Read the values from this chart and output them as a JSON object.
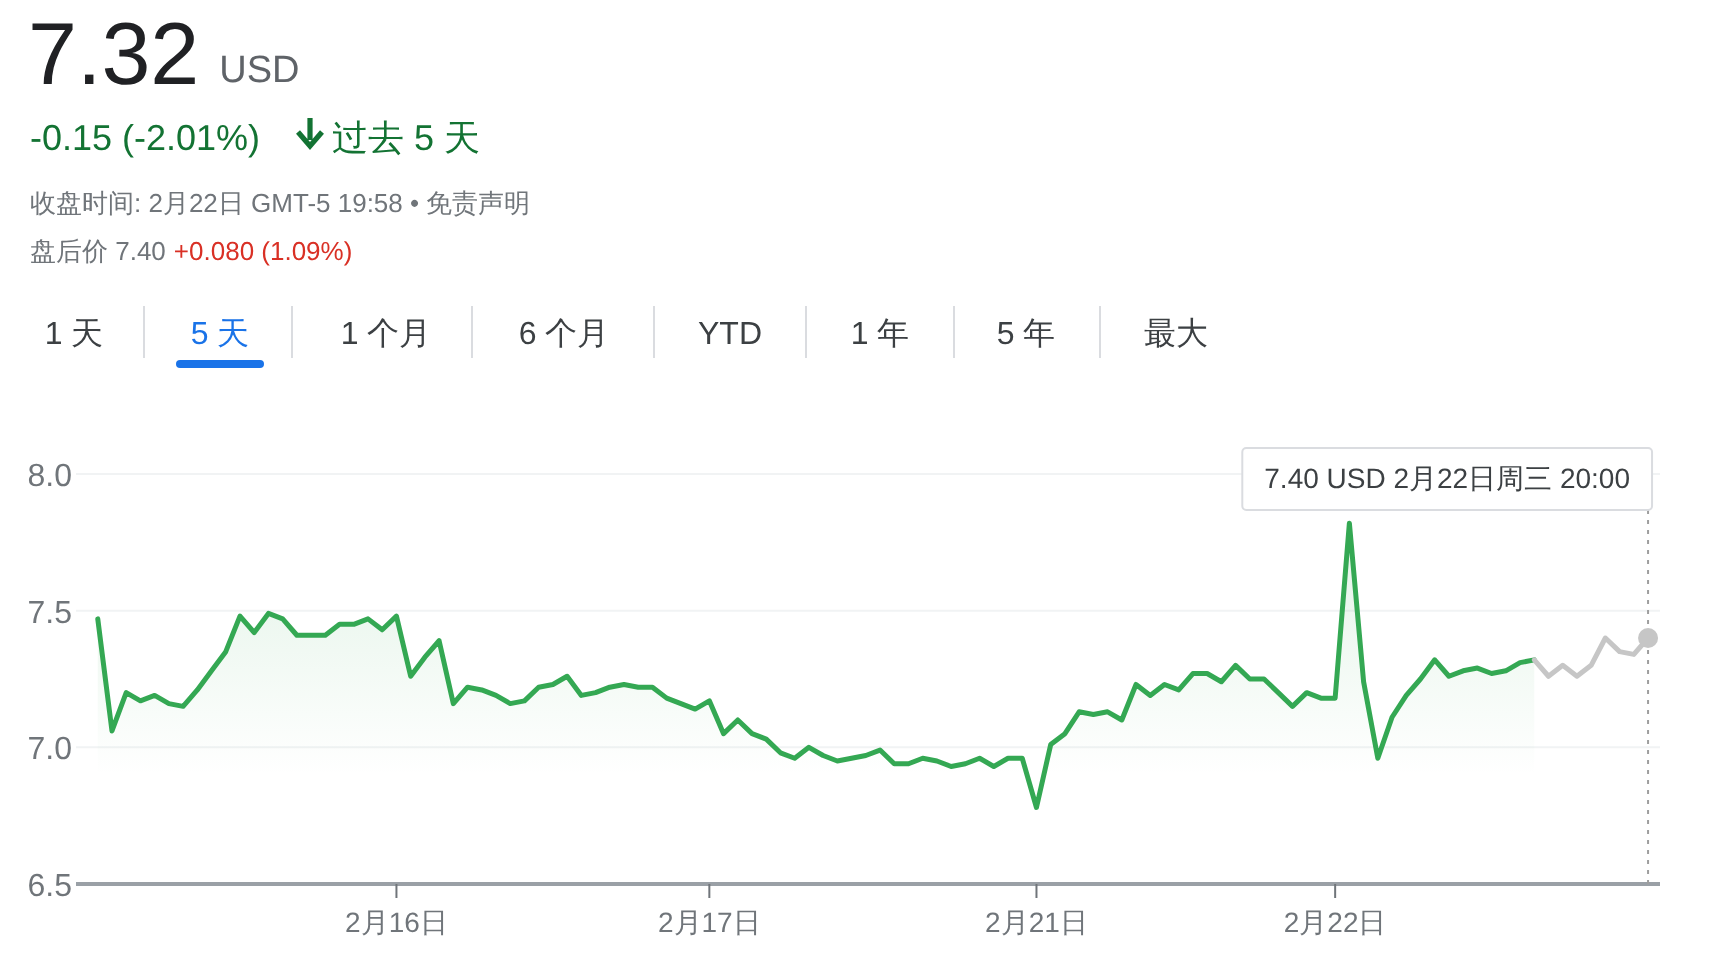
{
  "chart_data": {
    "type": "line",
    "title": "7.32",
    "subtitle": "USD",
    "annotations": [
      "-0.15 (-2.01%)",
      "过去 5 天",
      "收盘时间: 2月22日 GMT-5 19:58 • 免责声明",
      "盘后价 7.40",
      "+0.080 (1.09%)",
      "1 天",
      "5 天",
      "1 个月",
      "6 个月",
      "YTD",
      "1 年",
      "5 年",
      "最大",
      "7.40 USD  2月22日周三 20:00"
    ],
    "categories": [
      null,
      null,
      null,
      null,
      null,
      null,
      null,
      null,
      null,
      null,
      null,
      null,
      null,
      null,
      null,
      null,
      null,
      null,
      null,
      null,
      null,
      "2月16日",
      null,
      null,
      null,
      null,
      null,
      null,
      null,
      null,
      null,
      null,
      null,
      null,
      null,
      null,
      null,
      null,
      null,
      null,
      null,
      null,
      null,
      "2月17日",
      null,
      null,
      null,
      null,
      null,
      null,
      null,
      null,
      null,
      null,
      null,
      null,
      null,
      null,
      null,
      null,
      null,
      null,
      null,
      null,
      null,
      null,
      "2月21日",
      null,
      null,
      null,
      null,
      null,
      null,
      null,
      null,
      null,
      null,
      null,
      null,
      null,
      null,
      null,
      null,
      null,
      null,
      null,
      null,
      "2月22日",
      null,
      null,
      null,
      null,
      null,
      null,
      null,
      null,
      null,
      null,
      null,
      null,
      null,
      null,
      null,
      null,
      null,
      null,
      null,
      null,
      null,
      null
    ],
    "series": [
      {
        "type": "area",
        "color": "#34a853",
        "values": [
          7.47,
          7.06,
          7.2,
          7.17,
          7.19,
          7.16,
          7.15,
          7.21,
          7.28,
          7.35,
          7.48,
          7.42,
          7.49,
          7.47,
          7.41,
          7.41,
          7.41,
          7.45,
          7.45,
          7.47,
          7.43,
          7.48,
          7.26,
          7.33,
          7.39,
          7.16,
          7.22,
          7.21,
          7.19,
          7.16,
          7.17,
          7.22,
          7.23,
          7.26,
          7.19,
          7.2,
          7.22,
          7.23,
          7.22,
          7.22,
          7.18,
          7.16,
          7.14,
          7.17,
          7.05,
          7.1,
          7.05,
          7.03,
          6.98,
          6.96,
          7.0,
          6.97,
          6.95,
          6.96,
          6.97,
          6.99,
          6.94,
          6.94,
          6.96,
          6.95,
          6.93,
          6.94,
          6.96,
          6.93,
          6.96,
          6.96,
          6.78,
          7.01,
          7.05,
          7.13,
          7.12,
          7.13,
          7.1,
          7.23,
          7.19,
          7.23,
          7.21,
          7.27,
          7.27,
          7.24,
          7.3,
          7.25,
          7.25,
          7.2,
          7.15,
          7.2,
          7.18,
          7.18,
          7.82,
          7.24,
          6.96,
          7.11,
          7.19,
          7.25,
          7.32,
          7.26,
          7.28,
          7.29,
          7.27,
          7.28,
          7.31,
          7.32,
          null,
          null,
          null,
          null,
          null,
          null,
          null,
          null
        ]
      },
      {
        "type": "line",
        "color": "#c6c6c6",
        "values": [
          null,
          null,
          null,
          null,
          null,
          null,
          null,
          null,
          null,
          null,
          null,
          null,
          null,
          null,
          null,
          null,
          null,
          null,
          null,
          null,
          null,
          null,
          null,
          null,
          null,
          null,
          null,
          null,
          null,
          null,
          null,
          null,
          null,
          null,
          null,
          null,
          null,
          null,
          null,
          null,
          null,
          null,
          null,
          null,
          null,
          null,
          null,
          null,
          null,
          null,
          null,
          null,
          null,
          null,
          null,
          null,
          null,
          null,
          null,
          null,
          null,
          null,
          null,
          null,
          null,
          null,
          null,
          null,
          null,
          null,
          null,
          null,
          null,
          null,
          null,
          null,
          null,
          null,
          null,
          null,
          null,
          null,
          null,
          null,
          null,
          null,
          null,
          null,
          null,
          null,
          null,
          null,
          null,
          null,
          null,
          null,
          null,
          null,
          null,
          null,
          null,
          7.32,
          7.26,
          7.3,
          7.26,
          7.3,
          7.4,
          7.35,
          7.34,
          7.4
        ]
      }
    ],
    "ylim": [
      6.5,
      8.0
    ],
    "yticks": [
      6.5,
      {
        "value": 7,
        "label": "7.0"
      },
      7.5,
      {
        "value": 8,
        "label": "8.0"
      }
    ],
    "grid": "y",
    "marker": "none",
    "line_style": "solid"
  }
}
